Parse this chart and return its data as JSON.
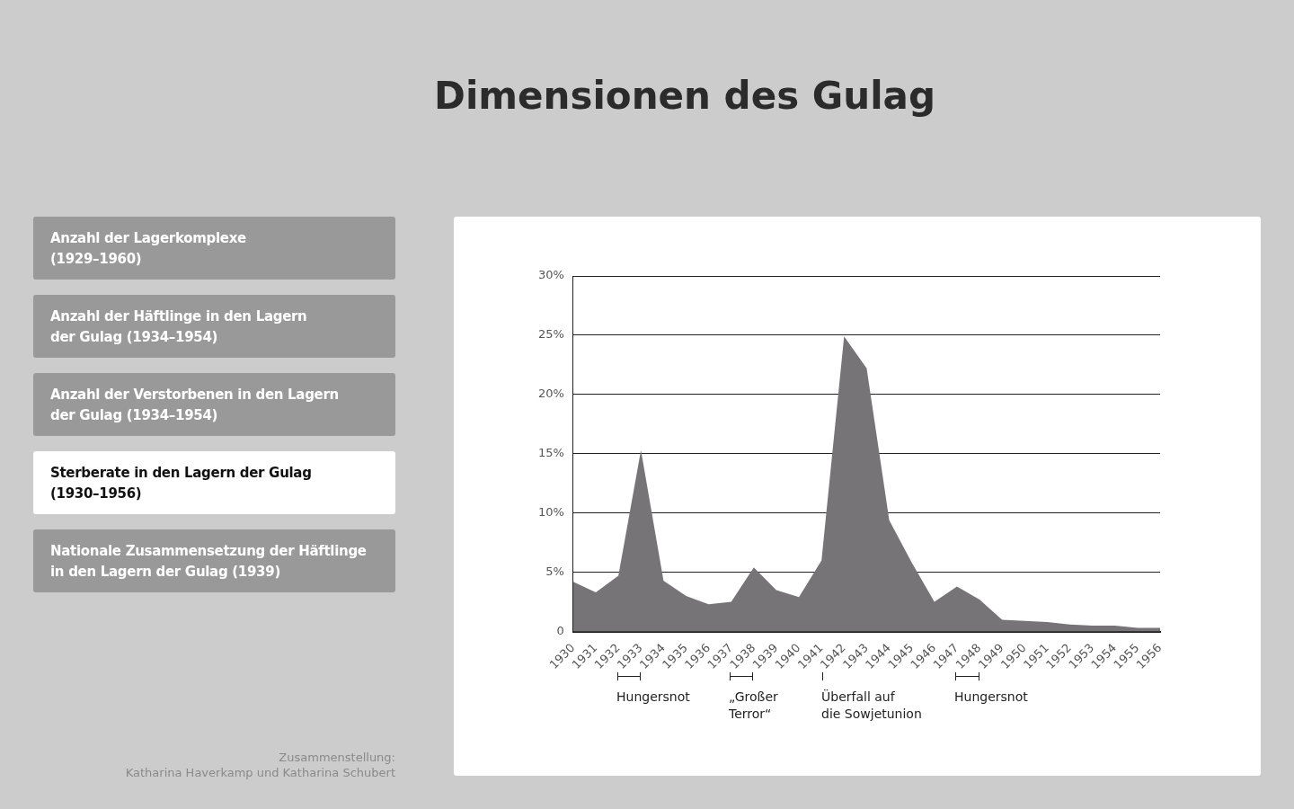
{
  "chart_data": [
    {
      "type": "area",
      "title": "Dimensionen des Gulag",
      "x": [
        1930,
        1931,
        1932,
        1933,
        1934,
        1935,
        1936,
        1937,
        1938,
        1939,
        1940,
        1941,
        1942,
        1943,
        1944,
        1945,
        1946,
        1947,
        1948,
        1949,
        1950,
        1951,
        1952,
        1953,
        1954,
        1955,
        1956
      ],
      "series": [
        {
          "color": "#767476",
          "values": [
            4.2,
            3.3,
            4.7,
            15.3,
            4.3,
            3.0,
            2.3,
            2.5,
            5.4,
            3.5,
            2.9,
            6.0,
            24.9,
            22.2,
            9.4,
            5.8,
            2.5,
            3.8,
            2.7,
            1.0,
            0.9,
            0.8,
            0.6,
            0.5,
            0.5,
            0.3,
            0.3
          ]
        }
      ],
      "xlim": [
        1930,
        1956
      ],
      "xticks": [
        1930,
        1931,
        1932,
        1933,
        1934,
        1935,
        1936,
        1937,
        1938,
        1939,
        1940,
        1941,
        1942,
        1943,
        1944,
        1945,
        1946,
        1947,
        1948,
        1949,
        1950,
        1951,
        1952,
        1953,
        1954,
        1955,
        1956
      ],
      "ylim": [
        0,
        30
      ],
      "yticks": [
        0,
        {
          "value": 5,
          "label": "5%"
        },
        {
          "value": 10,
          "label": "10%"
        },
        {
          "value": 15,
          "label": "15%"
        },
        {
          "value": 20,
          "label": "20%"
        },
        {
          "value": 25,
          "label": "25%"
        },
        {
          "value": 30,
          "label": "30%"
        }
      ],
      "grid": "y",
      "annotations": [
        "Hungersnot",
        "„Großer\nTerror“",
        "Überfall auf\ndie Sowjetunion",
        "Hungersnot"
      ]
    },
    {
      "type": "other",
      "categories": [
        "Anzahl der Lagerkomplexe\n(1929–1960)",
        "Anzahl der Häftlinge in den Lagern\nder Gulag (1934–1954)",
        "Anzahl der Verstorbenen in den Lagern\nder Gulag (1934–1954)",
        "Sterberate in den Lagern der Gulag\n(1930–1956)",
        "Nationale Zusammensetzung der Häftlinge\nin den Lagern der Gulag (1939)"
      ],
      "colors": [
        "#999999",
        "#999999",
        "#999999",
        "#ffffff",
        "#999999"
      ],
      "annotations": [
        "Zusammenstellung:\nKatharina Haverkamp und Katharina Schubert"
      ]
    }
  ]
}
